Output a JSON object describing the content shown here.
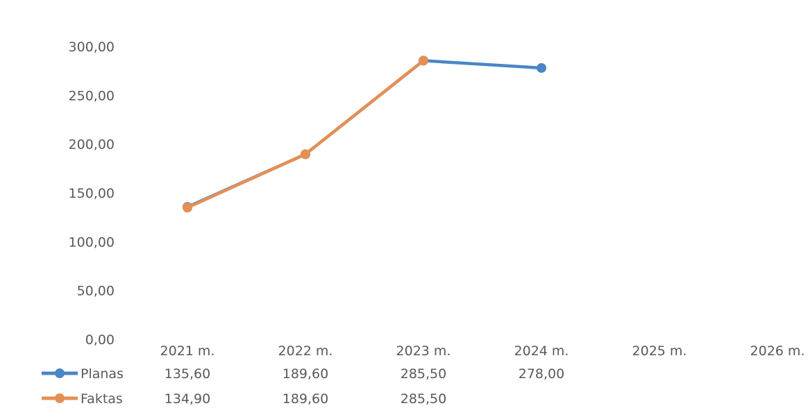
{
  "chart_data": {
    "type": "line",
    "title": "",
    "xlabel": "",
    "ylabel": "",
    "categories": [
      "2021 m.",
      "2022 m.",
      "2023 m.",
      "2024 m.",
      "2025 m.",
      "2026 m."
    ],
    "ylim": [
      0,
      300
    ],
    "yticks": [
      0,
      50,
      100,
      150,
      200,
      250,
      300
    ],
    "ytick_labels": [
      "0,00",
      "50,00",
      "100,00",
      "150,00",
      "200,00",
      "250,00",
      "300,00"
    ],
    "grid": false,
    "legend": "data-table-left",
    "series": [
      {
        "name": "Planas",
        "color": "#4a86c5",
        "values": [
          135.6,
          189.6,
          285.5,
          278.0,
          null,
          null
        ],
        "labels": [
          "135,60",
          "189,60",
          "285,50",
          "278,00",
          "",
          ""
        ]
      },
      {
        "name": "Faktas",
        "color": "#e58f55",
        "values": [
          134.9,
          189.6,
          285.5,
          null,
          null,
          null
        ],
        "labels": [
          "134,90",
          "189,60",
          "285,50",
          "",
          "",
          ""
        ]
      }
    ]
  }
}
